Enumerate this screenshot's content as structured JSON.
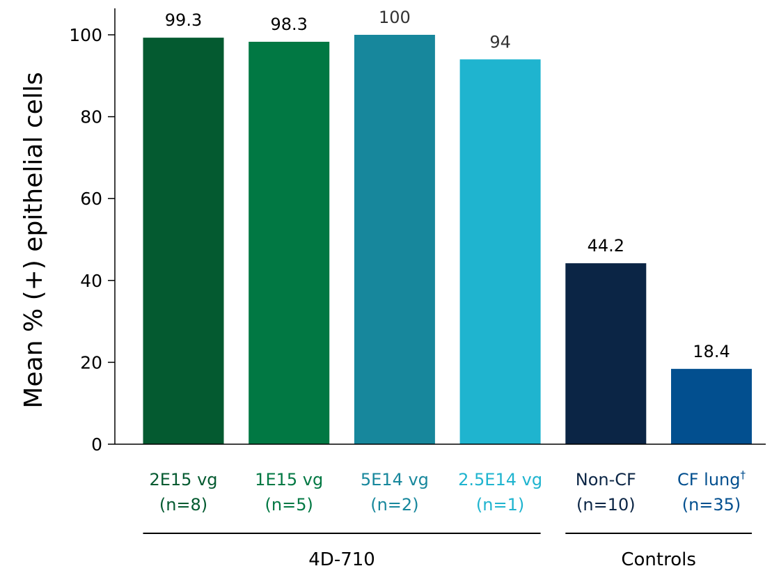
{
  "chart_data": {
    "type": "bar",
    "title": "",
    "xlabel": "",
    "ylabel": "Mean % (+) epithelial cells",
    "ylim": [
      0,
      100
    ],
    "yticks": [
      0,
      20,
      40,
      60,
      80,
      100
    ],
    "grid": false,
    "categories": [
      {
        "line1": "2E15 vg",
        "line1_sup": "",
        "line2": "(n=8)"
      },
      {
        "line1": "1E15 vg",
        "line1_sup": "",
        "line2": "(n=5)"
      },
      {
        "line1": "5E14 vg",
        "line1_sup": "",
        "line2": "(n=2)"
      },
      {
        "line1": "2.5E14 vg",
        "line1_sup": "",
        "line2": "(n=1)"
      },
      {
        "line1": "Non-CF",
        "line1_sup": "",
        "line2": "(n=10)"
      },
      {
        "line1": "CF lung",
        "line1_sup": "†",
        "line2": "(n=35)"
      }
    ],
    "values": [
      99.3,
      98.3,
      100,
      94,
      44.2,
      18.4
    ],
    "value_labels": [
      "99.3",
      "98.3",
      "100",
      "94",
      "44.2",
      "18.4"
    ],
    "bar_colors": [
      "#045a30",
      "#017843",
      "#17879c",
      "#1fb4cf",
      "#0b2545",
      "#024f8f"
    ],
    "label_colors": [
      "#045a30",
      "#017843",
      "#17879c",
      "#1fb4cf",
      "#0b2545",
      "#024f8f"
    ],
    "value_label_colors": [
      "#000000",
      "#000000",
      "#333333",
      "#333333",
      "#000000",
      "#000000"
    ],
    "groups": [
      {
        "label": "4D-710",
        "start": 0,
        "end": 3
      },
      {
        "label": "Controls",
        "start": 4,
        "end": 5
      }
    ]
  }
}
